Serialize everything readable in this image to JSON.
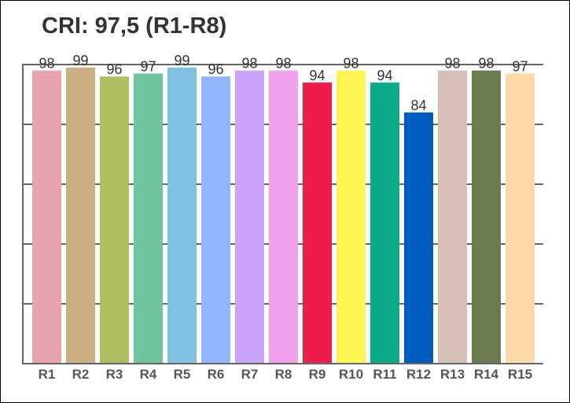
{
  "chart_data": {
    "type": "bar",
    "title": "CRI: 97,5 (R1-R8)",
    "xlabel": "",
    "ylabel": "",
    "ylim": [
      0,
      100
    ],
    "grid": true,
    "categories": [
      "R1",
      "R2",
      "R3",
      "R4",
      "R5",
      "R6",
      "R7",
      "R8",
      "R9",
      "R10",
      "R11",
      "R12",
      "R13",
      "R14",
      "R15"
    ],
    "values": [
      98,
      99,
      96,
      97,
      99,
      96,
      98,
      98,
      94,
      98,
      94,
      84,
      98,
      98,
      97
    ],
    "colors": [
      "#e8a4ae",
      "#cbae82",
      "#abc061",
      "#6ec59e",
      "#80c0e0",
      "#91b6fd",
      "#caa1fb",
      "#efa1ec",
      "#ec1d4b",
      "#fff554",
      "#0aa987",
      "#005bbf",
      "#d6bdb6",
      "#6a7b4f",
      "#fed9a6"
    ]
  }
}
